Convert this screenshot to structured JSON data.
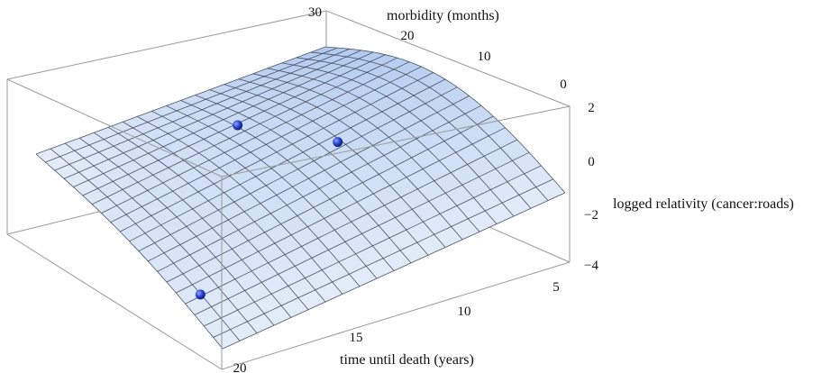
{
  "chart_data": {
    "type": "surface3d",
    "title": "",
    "axes": {
      "morbidity": {
        "label": "morbidity (months)",
        "range": [
          0,
          30
        ],
        "ticks": [
          {
            "value": 30,
            "label": "30"
          },
          {
            "value": 20,
            "label": "20"
          },
          {
            "value": 10,
            "label": "10"
          },
          {
            "value": 0,
            "label": "0"
          }
        ]
      },
      "time_until_death": {
        "label": "time until death (years)",
        "range": [
          1,
          23
        ],
        "ticks": [
          {
            "value": 20,
            "label": "20"
          },
          {
            "value": 15,
            "label": "15"
          },
          {
            "value": 10,
            "label": "10"
          },
          {
            "value": 5,
            "label": "5"
          }
        ]
      },
      "logged_relativity": {
        "label": "logged relativity (cancer:roads)",
        "range": [
          -4,
          2
        ],
        "ticks": [
          {
            "value": 2,
            "label": "2"
          },
          {
            "value": 0,
            "label": "0"
          },
          {
            "value": -2,
            "label": "−2"
          },
          {
            "value": -4,
            "label": "−4"
          }
        ]
      }
    },
    "surface": {
      "grid_lines": 20,
      "z_corner_near_left_back": -0.3,
      "z_peak_back_middle": 1.6,
      "z_front_right": -4.5,
      "z_front_left": -3.5
    },
    "points": [
      {
        "morbidity": 22,
        "time_until_death": 12,
        "z": 1.9
      },
      {
        "morbidity": 14,
        "time_until_death": 9,
        "z": 0.8
      },
      {
        "morbidity": 6,
        "time_until_death": 22,
        "z": -1.9
      }
    ],
    "colors": {
      "surface_light": "#eef4fb",
      "surface_dark": "#a9c4ee",
      "point": "#1f3fc8",
      "box": "#9a9a9a"
    }
  }
}
